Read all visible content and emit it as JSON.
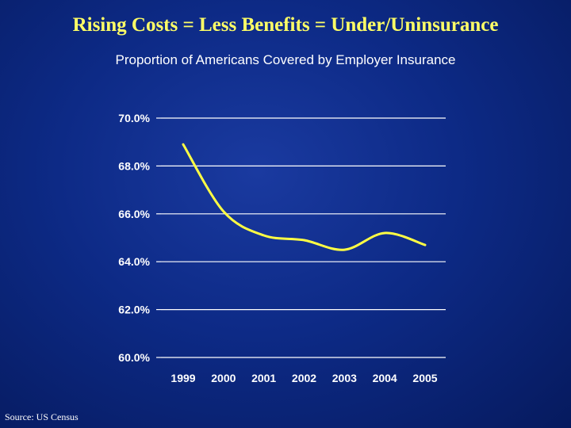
{
  "title": "Rising Costs = Less Benefits = Under/Uninsurance",
  "source": "Source: US Census",
  "colors": {
    "title": "#ffff66",
    "line": "#ffff44",
    "grid": "#ffffff",
    "text": "#ffffff"
  },
  "chart_data": {
    "type": "line",
    "title": "Proportion of Americans Covered by Employer Insurance",
    "xlabel": "",
    "ylabel": "",
    "categories": [
      "1999",
      "2000",
      "2001",
      "2002",
      "2003",
      "2004",
      "2005"
    ],
    "series": [
      {
        "values": [
          68.9,
          66.1,
          65.1,
          64.9,
          64.5,
          65.2,
          64.7
        ]
      }
    ],
    "yticks": [
      "70.0%",
      "68.0%",
      "66.0%",
      "64.0%",
      "62.0%",
      "60.0%"
    ],
    "ylim": [
      60,
      70
    ],
    "grid": true,
    "legend": "none"
  }
}
